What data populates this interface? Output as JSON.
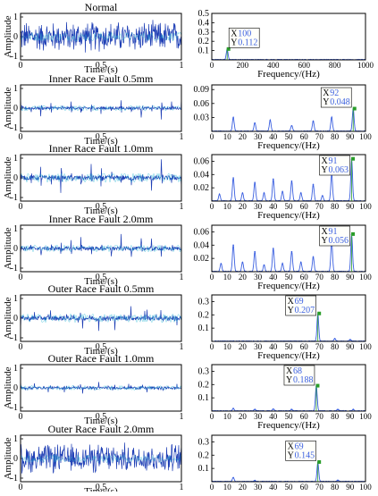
{
  "colors": {
    "axis": "#000000",
    "signal": "#1f3fb5",
    "signal_light": "#27b7d4",
    "spectrum": "#3a5fe0",
    "cursor": "#000000",
    "cursor_text": "#3a5fe0",
    "background": "#ffffff"
  },
  "time_axis": {
    "xlabel": "Time/(s)",
    "ylabel": "Amplitude",
    "xticks": [
      "0",
      "0.5",
      "1"
    ],
    "yticks": [
      "1",
      "0",
      "-1"
    ]
  },
  "freq_axis": {
    "xlabel": "Frequency/(Hz)"
  },
  "chart_data": [
    {
      "type": "line",
      "domain": "time",
      "title": "Normal",
      "xlabel": "Time/(s)",
      "ylabel": "Amplitude",
      "xlim": [
        0,
        1
      ],
      "ylim": [
        -1,
        1
      ],
      "xticks": [
        "0",
        "0.5",
        "1"
      ],
      "yticks": [
        "1",
        "0",
        "-1"
      ],
      "pattern": "noise",
      "amplitude": 0.85
    },
    {
      "type": "line",
      "domain": "frequency",
      "title": "",
      "xlabel": "Frequency/(Hz)",
      "ylabel": "",
      "xlim": [
        0,
        1000
      ],
      "ylim": [
        0,
        0.5
      ],
      "xticks": [
        "0",
        "200",
        "400",
        "600",
        "800",
        "1000"
      ],
      "yticks": [
        "0.5",
        "0.4",
        "0.3",
        "0.2",
        "0.1"
      ],
      "peaks": [
        [
          100,
          0.112
        ]
      ],
      "cursor": {
        "x_label": "X",
        "x_value": "100",
        "y_label": "Y",
        "y_value": "0.112",
        "x": 100,
        "y": 0.112
      }
    },
    {
      "type": "line",
      "domain": "time",
      "title": "Inner Race Fault 0.5mm",
      "xlabel": "Time/(s)",
      "ylabel": "Amplitude",
      "xlim": [
        0,
        1
      ],
      "ylim": [
        -1,
        1
      ],
      "xticks": [
        "0",
        "0.5",
        "1"
      ],
      "yticks": [
        "1",
        "0",
        "-1"
      ],
      "pattern": "impulses",
      "amplitude": 0.55,
      "impulse_count": 16
    },
    {
      "type": "line",
      "domain": "frequency",
      "title": "",
      "xlabel": "Frequency/(Hz)",
      "ylabel": "",
      "xlim": [
        0,
        100
      ],
      "ylim": [
        0,
        0.1
      ],
      "xticks": [
        "0",
        "10",
        "20",
        "30",
        "40",
        "50",
        "60",
        "70",
        "80",
        "90",
        "100"
      ],
      "yticks": [
        "0.09",
        "0.06",
        "0.03"
      ],
      "peaks": [
        [
          14,
          0.03
        ],
        [
          28,
          0.018
        ],
        [
          38,
          0.024
        ],
        [
          52,
          0.012
        ],
        [
          66,
          0.022
        ],
        [
          78,
          0.03
        ],
        [
          92,
          0.048
        ]
      ],
      "cursor": {
        "x_label": "X",
        "x_value": "92",
        "y_label": "Y",
        "y_value": "0.048",
        "x": 92,
        "y": 0.048
      }
    },
    {
      "type": "line",
      "domain": "time",
      "title": "Inner Race Fault 1.0mm",
      "xlabel": "Time/(s)",
      "ylabel": "Amplitude",
      "xlim": [
        0,
        1
      ],
      "ylim": [
        -1,
        1
      ],
      "xticks": [
        "0",
        "0.5",
        "1"
      ],
      "yticks": [
        "1",
        "0",
        "-1"
      ],
      "pattern": "impulses",
      "amplitude": 0.9,
      "impulse_count": 16
    },
    {
      "type": "line",
      "domain": "frequency",
      "title": "",
      "xlabel": "Frequency/(Hz)",
      "ylabel": "",
      "xlim": [
        0,
        100
      ],
      "ylim": [
        0,
        0.07
      ],
      "xticks": [
        "0",
        "10",
        "20",
        "30",
        "40",
        "50",
        "60",
        "70",
        "80",
        "90",
        "100"
      ],
      "yticks": [
        "0.06",
        "0.04",
        "0.02"
      ],
      "peaks": [
        [
          5,
          0.01
        ],
        [
          14,
          0.035
        ],
        [
          20,
          0.012
        ],
        [
          28,
          0.028
        ],
        [
          34,
          0.012
        ],
        [
          40,
          0.033
        ],
        [
          46,
          0.014
        ],
        [
          52,
          0.03
        ],
        [
          58,
          0.012
        ],
        [
          66,
          0.025
        ],
        [
          72,
          0.008
        ],
        [
          78,
          0.04
        ],
        [
          91,
          0.063
        ]
      ],
      "cursor": {
        "x_label": "X",
        "x_value": "91",
        "y_label": "Y",
        "y_value": "0.063",
        "x": 91,
        "y": 0.063
      }
    },
    {
      "type": "line",
      "domain": "time",
      "title": "Inner Race Fault 2.0mm",
      "xlabel": "Time/(s)",
      "ylabel": "Amplitude",
      "xlim": [
        0,
        1
      ],
      "ylim": [
        -1,
        1
      ],
      "xticks": [
        "0",
        "0.5",
        "1"
      ],
      "yticks": [
        "1",
        "0",
        "-1"
      ],
      "pattern": "impulses",
      "amplitude": 0.7,
      "impulse_count": 16
    },
    {
      "type": "line",
      "domain": "frequency",
      "title": "",
      "xlabel": "Frequency/(Hz)",
      "ylabel": "",
      "xlim": [
        0,
        100
      ],
      "ylim": [
        0,
        0.07
      ],
      "xticks": [
        "0",
        "10",
        "20",
        "30",
        "40",
        "50",
        "60",
        "70",
        "80",
        "90",
        "100"
      ],
      "yticks": [
        "0.06",
        "0.04",
        "0.02"
      ],
      "peaks": [
        [
          6,
          0.012
        ],
        [
          14,
          0.04
        ],
        [
          20,
          0.014
        ],
        [
          28,
          0.03
        ],
        [
          34,
          0.01
        ],
        [
          40,
          0.035
        ],
        [
          46,
          0.012
        ],
        [
          52,
          0.03
        ],
        [
          58,
          0.014
        ],
        [
          66,
          0.022
        ],
        [
          78,
          0.045
        ],
        [
          91,
          0.056
        ]
      ],
      "cursor": {
        "x_label": "X",
        "x_value": "91",
        "y_label": "Y",
        "y_value": "0.056",
        "x": 91,
        "y": 0.056
      }
    },
    {
      "type": "line",
      "domain": "time",
      "title": "Outer Race Fault 0.5mm",
      "xlabel": "Time/(s)",
      "ylabel": "Amplitude",
      "xlim": [
        0,
        1
      ],
      "ylim": [
        -1,
        1
      ],
      "xticks": [
        "0",
        "0.5",
        "1"
      ],
      "yticks": [
        "1",
        "0",
        "-1"
      ],
      "pattern": "dense_impulses",
      "amplitude": 0.85,
      "impulse_count": 70
    },
    {
      "type": "line",
      "domain": "frequency",
      "title": "",
      "xlabel": "Frequency/(Hz)",
      "ylabel": "",
      "xlim": [
        0,
        100
      ],
      "ylim": [
        0,
        0.35
      ],
      "xticks": [
        "0",
        "10",
        "20",
        "30",
        "40",
        "50",
        "60",
        "70",
        "80",
        "90",
        "100"
      ],
      "yticks": [
        "0.3",
        "0.2",
        "0.1"
      ],
      "peaks": [
        [
          69,
          0.207
        ],
        [
          80,
          0.02
        ],
        [
          90,
          0.012
        ]
      ],
      "cursor": {
        "x_label": "X",
        "x_value": "69",
        "y_label": "Y",
        "y_value": "0.207",
        "x": 69,
        "y": 0.207
      }
    },
    {
      "type": "line",
      "domain": "time",
      "title": "Outer Race Fault 1.0mm",
      "xlabel": "Time/(s)",
      "ylabel": "Amplitude",
      "xlim": [
        0,
        1
      ],
      "ylim": [
        -1,
        1
      ],
      "xticks": [
        "0",
        "0.5",
        "1"
      ],
      "yticks": [
        "1",
        "0",
        "-1"
      ],
      "pattern": "dense_impulses",
      "amplitude": 0.45,
      "impulse_count": 70
    },
    {
      "type": "line",
      "domain": "frequency",
      "title": "",
      "xlabel": "Frequency/(Hz)",
      "ylabel": "",
      "xlim": [
        0,
        100
      ],
      "ylim": [
        0,
        0.35
      ],
      "xticks": [
        "0",
        "10",
        "20",
        "30",
        "40",
        "50",
        "60",
        "70",
        "80",
        "90",
        "100"
      ],
      "yticks": [
        "0.3",
        "0.2",
        "0.1"
      ],
      "peaks": [
        [
          14,
          0.02
        ],
        [
          28,
          0.012
        ],
        [
          40,
          0.015
        ],
        [
          52,
          0.012
        ],
        [
          68,
          0.188
        ],
        [
          82,
          0.012
        ],
        [
          92,
          0.012
        ]
      ],
      "cursor": {
        "x_label": "X",
        "x_value": "68",
        "y_label": "Y",
        "y_value": "0.188",
        "x": 68,
        "y": 0.188
      }
    },
    {
      "type": "line",
      "domain": "time",
      "title": "Outer Race Fault 2.0mm",
      "xlabel": "Time/(s)",
      "ylabel": "Amplitude",
      "xlim": [
        0,
        1
      ],
      "ylim": [
        -1,
        1
      ],
      "xticks": [
        "0",
        "0.5",
        "1"
      ],
      "yticks": [
        "1",
        "0",
        "-1"
      ],
      "pattern": "noise",
      "amplitude": 0.8
    },
    {
      "type": "line",
      "domain": "frequency",
      "title": "",
      "xlabel": "Frequency/(Hz)",
      "ylabel": "",
      "xlim": [
        0,
        100
      ],
      "ylim": [
        0,
        0.35
      ],
      "xticks": [
        "0",
        "10",
        "20",
        "30",
        "40",
        "50",
        "60",
        "70",
        "80",
        "90",
        "100"
      ],
      "yticks": [
        "0.3",
        "0.2",
        "0.1"
      ],
      "peaks": [
        [
          14,
          0.03
        ],
        [
          28,
          0.008
        ],
        [
          69,
          0.145
        ],
        [
          82,
          0.01
        ]
      ],
      "cursor": {
        "x_label": "X",
        "x_value": "69",
        "y_label": "Y",
        "y_value": "0.145",
        "x": 69,
        "y": 0.145
      }
    }
  ]
}
